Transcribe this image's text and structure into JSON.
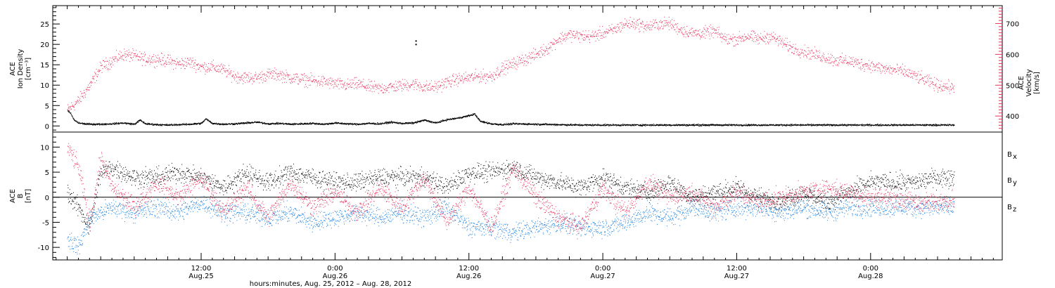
{
  "colors": {
    "axis": "#000000",
    "density": "#000000",
    "velocity": "#e8305a",
    "bx": "#000000",
    "by": "#1a7fe0",
    "bz": "#e8305a"
  },
  "chart_data": [
    {
      "panel": "top",
      "type": "scatter",
      "left_axis": {
        "label_lines": [
          "ACE",
          "Ion Density",
          "[cm⁻³]"
        ],
        "ylim": [
          -1.5,
          29.5
        ],
        "major_ticks": [
          0,
          5,
          10,
          15,
          20,
          25
        ],
        "tick_labels": [
          "0",
          "5",
          "10",
          "15",
          "20",
          "25"
        ]
      },
      "right_axis": {
        "label_lines": [
          "ACE",
          "Velocity",
          "[km/s]"
        ],
        "ylim": [
          348,
          758
        ],
        "major_ticks": [
          400,
          500,
          600,
          700
        ],
        "tick_labels": [
          "400",
          "500",
          "600",
          "700"
        ]
      },
      "density": {
        "x": [
          0,
          0.3,
          0.6,
          1.0,
          1.5,
          2,
          3,
          4,
          5,
          6,
          6.5,
          7,
          8,
          9,
          10,
          11,
          12,
          12.4,
          13,
          14,
          15,
          16,
          17,
          18,
          19,
          20,
          21,
          22,
          23,
          24,
          25,
          26,
          27,
          28,
          29,
          30,
          31,
          32,
          33,
          34,
          35,
          36,
          36.5,
          37,
          38,
          39,
          40,
          42,
          44,
          46,
          48,
          50,
          52,
          54,
          56,
          58,
          60,
          62,
          64,
          66,
          68,
          70,
          72,
          74,
          76,
          78,
          79.5
        ],
        "y": [
          4,
          3,
          1.5,
          0.8,
          0.6,
          0.5,
          0.5,
          0.6,
          0.8,
          0.5,
          1.5,
          0.6,
          0.4,
          0.3,
          0.4,
          0.5,
          0.7,
          1.8,
          0.7,
          0.5,
          0.6,
          0.8,
          1.0,
          0.6,
          0.7,
          0.5,
          0.6,
          0.7,
          0.5,
          0.8,
          0.6,
          0.5,
          0.7,
          0.6,
          1.0,
          0.7,
          0.8,
          1.5,
          0.8,
          1.6,
          2.0,
          2.6,
          3.0,
          1.2,
          0.6,
          0.4,
          0.6,
          0.5,
          0.4,
          0.3,
          0.3,
          0.3,
          0.3,
          0.3,
          0.3,
          0.3,
          0.3,
          0.3,
          0.3,
          0.3,
          0.3,
          0.3,
          0.3,
          0.3,
          0.3,
          0.3,
          0.3
        ]
      },
      "velocity": {
        "x": [
          0,
          1,
          2,
          3,
          4,
          5,
          6,
          7,
          8,
          9,
          10,
          11,
          12,
          13,
          14,
          15,
          16,
          17,
          18,
          19,
          20,
          21,
          22,
          23,
          24,
          25,
          26,
          27,
          28,
          29,
          30,
          31,
          32,
          33,
          34,
          35,
          36,
          37,
          38,
          39,
          40,
          41,
          42,
          43,
          44,
          45,
          46,
          47,
          48,
          49,
          50,
          51,
          52,
          53,
          54,
          55,
          56,
          57,
          58,
          59,
          60,
          61,
          62,
          63,
          64,
          65,
          66,
          67,
          68,
          69,
          70,
          71,
          72,
          73,
          74,
          75,
          76,
          77,
          78,
          79,
          79.5
        ],
        "y": [
          420,
          450,
          500,
          560,
          580,
          600,
          595,
          585,
          585,
          580,
          570,
          575,
          560,
          560,
          550,
          530,
          525,
          525,
          535,
          535,
          525,
          520,
          515,
          512,
          505,
          500,
          505,
          495,
          490,
          495,
          500,
          505,
          495,
          495,
          510,
          520,
          525,
          530,
          530,
          555,
          570,
          585,
          600,
          620,
          650,
          665,
          660,
          660,
          670,
          680,
          700,
          700,
          690,
          700,
          700,
          680,
          670,
          670,
          675,
          650,
          650,
          660,
          650,
          660,
          640,
          620,
          610,
          600,
          590,
          580,
          580,
          570,
          565,
          555,
          550,
          545,
          530,
          515,
          500,
          495,
          490
        ]
      }
    },
    {
      "panel": "bottom",
      "type": "scatter",
      "left_axis": {
        "label_lines": [
          "ACE",
          "B",
          "[nT]"
        ],
        "ylim": [
          -12.5,
          13
        ],
        "major_ticks": [
          -10,
          -5,
          0,
          5,
          10
        ],
        "tick_labels": [
          "-10",
          "-5",
          "0",
          "5",
          "10"
        ]
      },
      "legend_placement": "right",
      "series": [
        {
          "name": "Bx",
          "legend": "B",
          "sub": "x",
          "x": [
            0,
            1,
            2,
            3,
            4,
            6,
            8,
            10,
            12,
            14,
            16,
            18,
            20,
            22,
            24,
            26,
            28,
            30,
            32,
            34,
            36,
            38,
            40,
            42,
            44,
            46,
            48,
            50,
            52,
            54,
            56,
            58,
            60,
            62,
            64,
            66,
            68,
            70,
            72,
            74,
            76,
            78,
            79.5
          ],
          "y": [
            1,
            -2,
            -6,
            5,
            6,
            4,
            4,
            5,
            4,
            2,
            5,
            3,
            5,
            4,
            3,
            3,
            4,
            4,
            4,
            2,
            5,
            5,
            6,
            4,
            3,
            2,
            4,
            2,
            1,
            3,
            0,
            1,
            2,
            0,
            -1,
            1,
            -1,
            1,
            3,
            3,
            3,
            4,
            4
          ]
        },
        {
          "name": "By",
          "legend": "B",
          "sub": "y",
          "x": [
            0,
            1,
            2,
            3,
            4,
            6,
            8,
            10,
            12,
            14,
            16,
            18,
            20,
            22,
            24,
            26,
            28,
            30,
            32,
            34,
            36,
            38,
            40,
            42,
            44,
            46,
            48,
            50,
            52,
            54,
            56,
            58,
            60,
            62,
            64,
            66,
            68,
            70,
            72,
            74,
            76,
            78,
            79.5
          ],
          "y": [
            -8,
            -10,
            -4,
            -3,
            -2,
            -3,
            -2,
            -3,
            -1,
            -3,
            -3,
            -4,
            -3,
            -5,
            -4,
            -3,
            -4,
            -3,
            -4,
            -2,
            -6,
            -6,
            -7,
            -6,
            -5,
            -6,
            -6,
            -5,
            -3,
            -4,
            -2,
            -3,
            -2,
            -2,
            -3,
            -2,
            -3,
            -2,
            -2,
            -2,
            -2,
            -2,
            -2
          ]
        },
        {
          "name": "Bz",
          "legend": "B",
          "sub": "z",
          "x": [
            0,
            1,
            2,
            3,
            4,
            6,
            8,
            10,
            12,
            14,
            16,
            18,
            20,
            22,
            24,
            26,
            28,
            30,
            32,
            34,
            36,
            38,
            40,
            42,
            44,
            46,
            48,
            50,
            52,
            54,
            56,
            58,
            60,
            62,
            64,
            66,
            68,
            70,
            72,
            74,
            76,
            78,
            79.5
          ],
          "y": [
            10,
            6,
            -5,
            8,
            2,
            -2,
            3,
            0,
            4,
            -3,
            2,
            -4,
            3,
            -2,
            1,
            -3,
            2,
            -2,
            4,
            -5,
            2,
            -6,
            6,
            0,
            -4,
            -6,
            2,
            -3,
            3,
            0,
            1,
            -2,
            1,
            -1,
            0,
            1,
            2,
            1,
            0,
            0,
            -1,
            -1,
            0
          ]
        }
      ]
    }
  ],
  "x_axis": {
    "xlim": [
      -1.3,
      83.8
    ],
    "major_ticks": [
      12,
      24,
      36,
      48,
      60,
      72
    ],
    "tick_labels": [
      {
        "time": "12:00",
        "date": "Aug.25"
      },
      {
        "time": "0:00",
        "date": "Aug.26"
      },
      {
        "time": "12:00",
        "date": "Aug.26"
      },
      {
        "time": "0:00",
        "date": "Aug.27"
      },
      {
        "time": "12:00",
        "date": "Aug.27"
      },
      {
        "time": "0:00",
        "date": "Aug.28"
      }
    ],
    "title": "hours:minutes, Aug. 25, 2012 – Aug. 28, 2012"
  },
  "outlier_point": {
    "x": 31.2,
    "y": 21
  }
}
